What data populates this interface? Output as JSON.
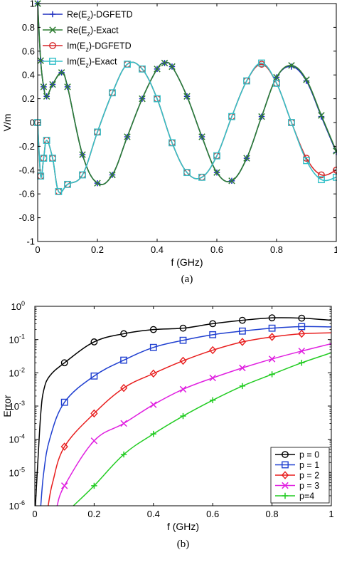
{
  "chart_data": [
    {
      "type": "line",
      "caption": "(a)",
      "xlabel": "f (GHz)",
      "ylabel": "V/m",
      "xlim": [
        0,
        1
      ],
      "ylim": [
        -1,
        1
      ],
      "xticks": [
        0,
        0.2,
        0.4,
        0.6,
        0.8,
        1
      ],
      "xtick_labels": [
        "0",
        "0.2",
        "0.4",
        "0.6",
        "0.8",
        "1"
      ],
      "yticks": [
        -1,
        -0.8,
        -0.6,
        -0.4,
        -0.2,
        0,
        0.2,
        0.4,
        0.6,
        0.8,
        1
      ],
      "ytick_labels": [
        "-1",
        "-0.8",
        "-0.6",
        "-0.4",
        "-0.2",
        "0",
        "0.2",
        "0.4",
        "0.6",
        "0.8",
        "1"
      ],
      "grid": false,
      "legend_position": "top-left",
      "series": [
        {
          "name": "Re(Ez)-DGFETD",
          "legend_main": "Re(E",
          "legend_sub": "z",
          "legend_tail": ")-DGFETD",
          "color": "#1f2fbf",
          "marker": "plus",
          "x": [
            0,
            0.01,
            0.02,
            0.03,
            0.05,
            0.08,
            0.1,
            0.15,
            0.2,
            0.25,
            0.3,
            0.35,
            0.4,
            0.425,
            0.45,
            0.5,
            0.55,
            0.6,
            0.65,
            0.7,
            0.75,
            0.8,
            0.85,
            0.9,
            0.95,
            1.0
          ],
          "y": [
            1.0,
            0.52,
            0.3,
            0.22,
            0.32,
            0.42,
            0.3,
            -0.27,
            -0.51,
            -0.44,
            -0.12,
            0.2,
            0.45,
            0.5,
            0.47,
            0.22,
            -0.12,
            -0.42,
            -0.49,
            -0.3,
            0.05,
            0.38,
            0.47,
            0.35,
            0.05,
            -0.25
          ]
        },
        {
          "name": "Re(Ez)-Exact",
          "legend_main": "Re(E",
          "legend_sub": "z",
          "legend_tail": ")-Exact",
          "color": "#2e7d32",
          "marker": "x",
          "x": [
            0,
            0.01,
            0.02,
            0.03,
            0.05,
            0.08,
            0.1,
            0.15,
            0.2,
            0.25,
            0.3,
            0.35,
            0.4,
            0.425,
            0.45,
            0.5,
            0.55,
            0.6,
            0.65,
            0.7,
            0.75,
            0.8,
            0.85,
            0.9,
            0.95,
            1.0
          ],
          "y": [
            1.0,
            0.52,
            0.3,
            0.22,
            0.32,
            0.42,
            0.3,
            -0.27,
            -0.51,
            -0.44,
            -0.12,
            0.2,
            0.45,
            0.5,
            0.47,
            0.22,
            -0.12,
            -0.42,
            -0.49,
            -0.3,
            0.05,
            0.38,
            0.48,
            0.36,
            0.06,
            -0.24
          ]
        },
        {
          "name": "Im(Ez)-DGFETD",
          "legend_main": "Im(E",
          "legend_sub": "z",
          "legend_tail": ")-DGFETD",
          "color": "#d62728",
          "marker": "circle",
          "x": [
            0,
            0.01,
            0.02,
            0.03,
            0.05,
            0.07,
            0.1,
            0.15,
            0.2,
            0.25,
            0.3,
            0.35,
            0.4,
            0.45,
            0.5,
            0.55,
            0.6,
            0.65,
            0.7,
            0.75,
            0.8,
            0.85,
            0.9,
            0.95,
            1.0
          ],
          "y": [
            0.0,
            -0.45,
            -0.3,
            -0.15,
            -0.3,
            -0.58,
            -0.52,
            -0.44,
            -0.08,
            0.25,
            0.49,
            0.45,
            0.2,
            -0.17,
            -0.42,
            -0.46,
            -0.28,
            0.05,
            0.35,
            0.49,
            0.33,
            0.0,
            -0.3,
            -0.44,
            -0.4
          ]
        },
        {
          "name": "Im(Ez)-Exact",
          "legend_main": "Im(E",
          "legend_sub": "z",
          "legend_tail": ")-Exact",
          "color": "#33c0c8",
          "marker": "square",
          "x": [
            0,
            0.01,
            0.02,
            0.03,
            0.05,
            0.07,
            0.1,
            0.15,
            0.2,
            0.25,
            0.3,
            0.35,
            0.4,
            0.45,
            0.5,
            0.55,
            0.6,
            0.65,
            0.7,
            0.75,
            0.8,
            0.85,
            0.9,
            0.95,
            1.0
          ],
          "y": [
            0.0,
            -0.45,
            -0.3,
            -0.15,
            -0.3,
            -0.58,
            -0.52,
            -0.44,
            -0.08,
            0.25,
            0.49,
            0.45,
            0.2,
            -0.17,
            -0.42,
            -0.46,
            -0.28,
            0.05,
            0.35,
            0.5,
            0.33,
            0.0,
            -0.32,
            -0.48,
            -0.46
          ]
        }
      ]
    },
    {
      "type": "line",
      "caption": "(b)",
      "xlabel": "f (GHz)",
      "ylabel": "Error",
      "yscale": "log",
      "xlim": [
        0,
        1
      ],
      "ylim": [
        1e-06,
        1
      ],
      "xticks": [
        0,
        0.2,
        0.4,
        0.6,
        0.8,
        1
      ],
      "xtick_labels": [
        "0",
        "0.2",
        "0.4",
        "0.6",
        "0.8",
        "1"
      ],
      "yticks_base": [
        "10",
        "10",
        "10",
        "10",
        "10",
        "10",
        "10"
      ],
      "yticks_exp": [
        "-6",
        "-5",
        "-4",
        "-3",
        "-2",
        "-1",
        "0"
      ],
      "grid": false,
      "legend_position": "bottom-right",
      "series": [
        {
          "name": "p = 0",
          "color": "#000000",
          "marker": "circle",
          "x": [
            0.002,
            0.01,
            0.02,
            0.03,
            0.05,
            0.1,
            0.2,
            0.3,
            0.4,
            0.5,
            0.6,
            0.7,
            0.8,
            0.9,
            1.0
          ],
          "y": [
            1e-06,
            2e-05,
            0.0006,
            0.003,
            0.008,
            0.02,
            0.085,
            0.15,
            0.2,
            0.22,
            0.3,
            0.38,
            0.45,
            0.44,
            0.38
          ]
        },
        {
          "name": "p = 1",
          "color": "#1f3fd0",
          "marker": "square",
          "x": [
            0.02,
            0.03,
            0.05,
            0.1,
            0.2,
            0.3,
            0.4,
            0.5,
            0.6,
            0.7,
            0.8,
            0.9,
            1.0
          ],
          "y": [
            1e-06,
            1e-05,
            0.0001,
            0.0013,
            0.008,
            0.024,
            0.058,
            0.095,
            0.14,
            0.18,
            0.22,
            0.245,
            0.24
          ]
        },
        {
          "name": "p = 2",
          "color": "#e81e1e",
          "marker": "diamond",
          "x": [
            0.045,
            0.06,
            0.1,
            0.2,
            0.3,
            0.4,
            0.5,
            0.6,
            0.7,
            0.8,
            0.9,
            1.0
          ],
          "y": [
            1e-06,
            5e-06,
            6e-05,
            0.0006,
            0.0035,
            0.0095,
            0.023,
            0.048,
            0.085,
            0.12,
            0.15,
            0.16
          ]
        },
        {
          "name": "p = 3",
          "color": "#e020e0",
          "marker": "x",
          "x": [
            0.075,
            0.1,
            0.2,
            0.3,
            0.4,
            0.5,
            0.6,
            0.7,
            0.8,
            0.9,
            1.0
          ],
          "y": [
            1e-06,
            4e-06,
            9e-05,
            0.0003,
            0.0011,
            0.0032,
            0.007,
            0.014,
            0.026,
            0.045,
            0.075
          ]
        },
        {
          "name": "p=4",
          "color": "#22cc22",
          "marker": "plus",
          "x": [
            0.13,
            0.2,
            0.3,
            0.4,
            0.5,
            0.6,
            0.7,
            0.8,
            0.9,
            1.0
          ],
          "y": [
            1e-06,
            4e-06,
            3.5e-05,
            0.000145,
            0.0005,
            0.0015,
            0.004,
            0.009,
            0.02,
            0.04
          ]
        }
      ]
    }
  ]
}
